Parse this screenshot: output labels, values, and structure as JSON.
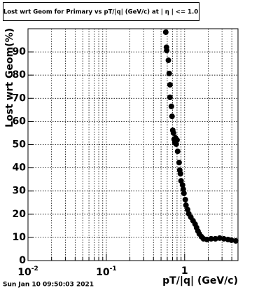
{
  "chart_data": {
    "type": "scatter",
    "title": "Lost wrt Geom for Primary vs pT/|q| (GeV/c) at | η | <= 1.0",
    "x_label": "pT/|q| (GeV/c)",
    "y_label": "Lost wrt Geom(%)",
    "timestamp": "Sun Jan 10 09:50:03 2021",
    "log_x": true,
    "grid": true,
    "color": "#000000",
    "xlim": [
      0.01,
      4.8
    ],
    "ylim": [
      0,
      100
    ],
    "xticks": [
      {
        "value": 0.01,
        "label": "10",
        "exponent": "-2"
      },
      {
        "value": 0.1,
        "label": "10",
        "exponent": "-1"
      },
      1
    ],
    "yticks": [
      0,
      10,
      20,
      30,
      40,
      50,
      60,
      70,
      80,
      90
    ],
    "series": [
      {
        "name": "Lost wrt Geom",
        "color": "#000000",
        "x": [
          0.574,
          0.586,
          0.59,
          0.62,
          0.636,
          0.65,
          0.65,
          0.677,
          0.69,
          0.705,
          0.72,
          0.735,
          0.75,
          0.765,
          0.8,
          0.78,
          0.814,
          0.85,
          0.866,
          0.884,
          0.9,
          0.94,
          0.96,
          0.98,
          1.02,
          1.04,
          1.09,
          1.13,
          1.2,
          1.28,
          1.36,
          1.42,
          1.48,
          1.54,
          1.64,
          1.74,
          1.93,
          2.18,
          2.47,
          2.8,
          3.16,
          3.57,
          3.96,
          4.49
        ],
        "values": [
          98.5,
          92,
          90.6,
          86.4,
          80.7,
          75.8,
          70.4,
          66.5,
          62.2,
          56.2,
          55,
          52.3,
          51,
          52.9,
          52,
          50.2,
          47.1,
          42.3,
          39,
          37.5,
          34.4,
          32.6,
          30.8,
          29,
          26.3,
          23.9,
          22,
          20.2,
          18.7,
          17.2,
          15.7,
          14.2,
          12.7,
          11.5,
          10.3,
          9.4,
          9.1,
          9.4,
          9.4,
          9.7,
          9.4,
          9.1,
          8.8,
          8.5
        ]
      }
    ]
  }
}
